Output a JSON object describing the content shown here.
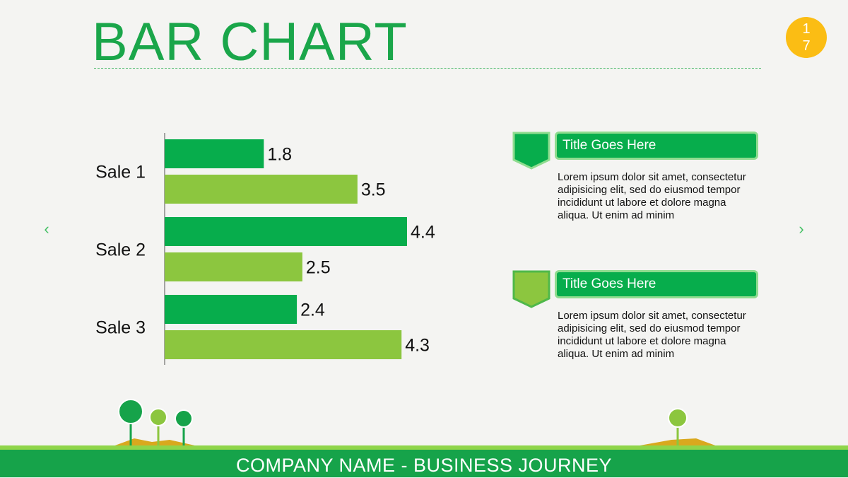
{
  "slide": {
    "title": "BAR CHART",
    "page_number_top": "1",
    "page_number_bottom": "7",
    "prev_arrow": "‹",
    "next_arrow": "›",
    "footer": "COMPANY NAME - BUSINESS JOURNEY"
  },
  "colors": {
    "accent": "#1aa64a",
    "dark_green": "#07ad4c",
    "light_green": "#8cc63f",
    "badge": "#fbbd14",
    "tag_border": "#8fdc8f"
  },
  "chart_data": {
    "type": "bar",
    "orientation": "horizontal",
    "categories": [
      "Sale 1",
      "Sale 2",
      "Sale 3"
    ],
    "series": [
      {
        "values": [
          1.8,
          4.4,
          2.4
        ],
        "color": "#07ad4c"
      },
      {
        "values": [
          3.5,
          2.5,
          4.3
        ],
        "color": "#8cc63f"
      }
    ],
    "xlim": [
      0,
      4.4
    ],
    "grid": false,
    "legend": "none",
    "data_labels": true
  },
  "cards": [
    {
      "title": "Title Goes Here",
      "text": "Lorem ipsum dolor sit amet, consectetur adipisicing elit, sed do eiusmod tempor incididunt ut labore et dolore magna aliqua. Ut enim ad minim",
      "tag_color": "#07ad4c"
    },
    {
      "title": "Title Goes Here",
      "text": "Lorem ipsum dolor sit amet, consectetur adipisicing elit, sed do eiusmod tempor incididunt ut labore et dolore magna aliqua. Ut enim ad minim",
      "tag_color": "#8cc63f"
    }
  ]
}
